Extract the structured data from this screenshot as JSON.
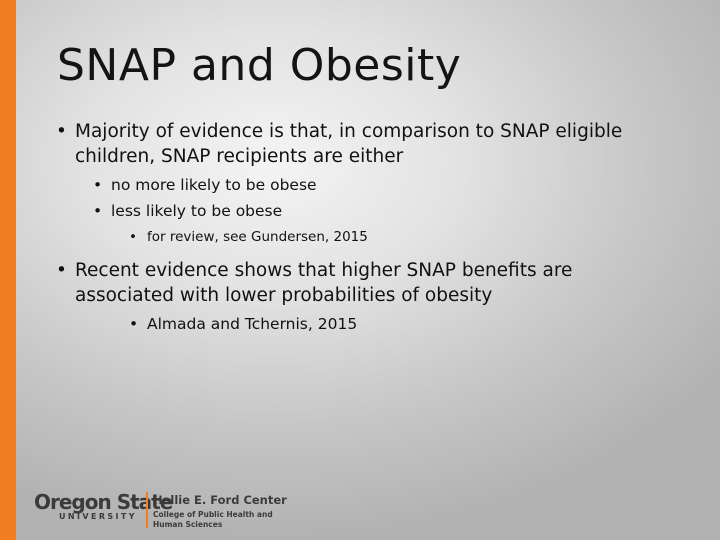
{
  "slide": {
    "title": "SNAP and Obesity",
    "bullets": [
      {
        "text": "Majority of evidence is that, in comparison to SNAP eligible children, SNAP recipients are either",
        "children": [
          {
            "text": "no more likely to be obese"
          },
          {
            "text": "less likely to be obese",
            "children": [
              {
                "text": "for review, see Gundersen, 2015"
              }
            ]
          }
        ]
      },
      {
        "text": "Recent evidence shows that higher SNAP benefits are associated with lower probabilities of obesity",
        "children": [
          {
            "text": "Almada and Tchernis, 2015"
          }
        ]
      }
    ],
    "bullet_glyph": "•"
  },
  "footer": {
    "university_name": "Oregon State",
    "university_sub": "UNIVERSITY",
    "center_name": "Hallie E. Ford Center",
    "center_sub": "College of Public Health and Human Sciences"
  },
  "colors": {
    "accent": "#f07d22",
    "text": "#141414",
    "logo_gray": "#3b3b3b"
  }
}
